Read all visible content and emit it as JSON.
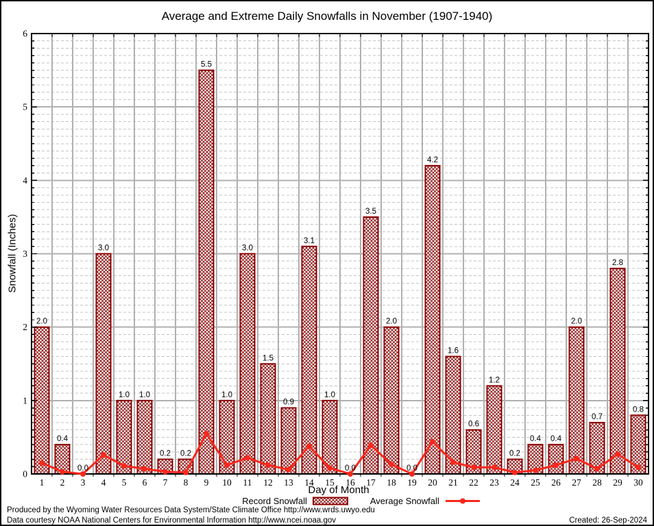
{
  "title": "Average and Extreme Daily Snowfalls in November (1907-1940)",
  "y_axis_label": "Snowfall (Inches)",
  "x_axis_label": "Day of Month",
  "legend": {
    "record_label": "Record Snowfall",
    "average_label": "Average Snowfall"
  },
  "footer": {
    "line1": "Produced by the Wyoming Water Resources Data System/State Climate Office http://www.wrds.uwyo.edu",
    "line2": "Data courtesy NOAA National Centers for Environmental Information http://www.ncei.noaa.gov",
    "created": "Created: 26-Sep-2024"
  },
  "colors": {
    "bar_border": "#8b0000",
    "bar_hatch": "#8f1212",
    "average_line": "#f8281c",
    "grid_major": "#b0b0b0",
    "grid_minor": "#c3c3c3",
    "axis": "#000000",
    "background": "#ffffff",
    "text": "#000000"
  },
  "chart_data": {
    "type": "bar",
    "title": "Average and Extreme Daily Snowfalls in November (1907-1940)",
    "xlabel": "Day of Month",
    "ylabel": "Snowfall (Inches)",
    "ylim": [
      0,
      6
    ],
    "ytick_interval": 1,
    "minor_ytick_interval": 0.1,
    "grid": "major solid, minor dashed horizontal at 0.1; vertical solid at day boundaries",
    "legend_position": "bottom",
    "categories": [
      1,
      2,
      3,
      4,
      5,
      6,
      7,
      8,
      9,
      10,
      11,
      12,
      13,
      14,
      15,
      16,
      17,
      18,
      19,
      20,
      21,
      22,
      23,
      24,
      25,
      26,
      27,
      28,
      29,
      30
    ],
    "series": [
      {
        "name": "Record Snowfall",
        "type": "bar",
        "values": [
          2.0,
          0.4,
          0.0,
          3.0,
          1.0,
          1.0,
          0.2,
          0.2,
          5.5,
          1.0,
          3.0,
          1.5,
          0.9,
          3.1,
          1.0,
          0.0,
          3.5,
          2.0,
          0.0,
          4.2,
          1.6,
          0.6,
          1.2,
          0.2,
          0.4,
          0.4,
          2.0,
          0.7,
          2.8,
          0.8
        ],
        "labels": [
          "2.0",
          "0.4",
          "0.0",
          "3.0",
          "1.0",
          "1.0",
          "0.2",
          "0.2",
          "5.5",
          "1.0",
          "3.0",
          "1.5",
          "0.9",
          "3.1",
          "1.0",
          "0.0",
          "3.5",
          "2.0",
          "0.0",
          "4.2",
          "1.6",
          "0.6",
          "1.2",
          "0.2",
          "0.4",
          "0.4",
          "2.0",
          "0.7",
          "2.8",
          "0.8"
        ]
      },
      {
        "name": "Average Snowfall",
        "type": "line",
        "values": [
          0.15,
          0.03,
          0.0,
          0.26,
          0.11,
          0.07,
          0.03,
          0.02,
          0.55,
          0.12,
          0.22,
          0.12,
          0.06,
          0.38,
          0.08,
          0.0,
          0.39,
          0.13,
          0.0,
          0.44,
          0.16,
          0.09,
          0.09,
          0.02,
          0.05,
          0.12,
          0.21,
          0.07,
          0.27,
          0.09
        ]
      }
    ]
  }
}
